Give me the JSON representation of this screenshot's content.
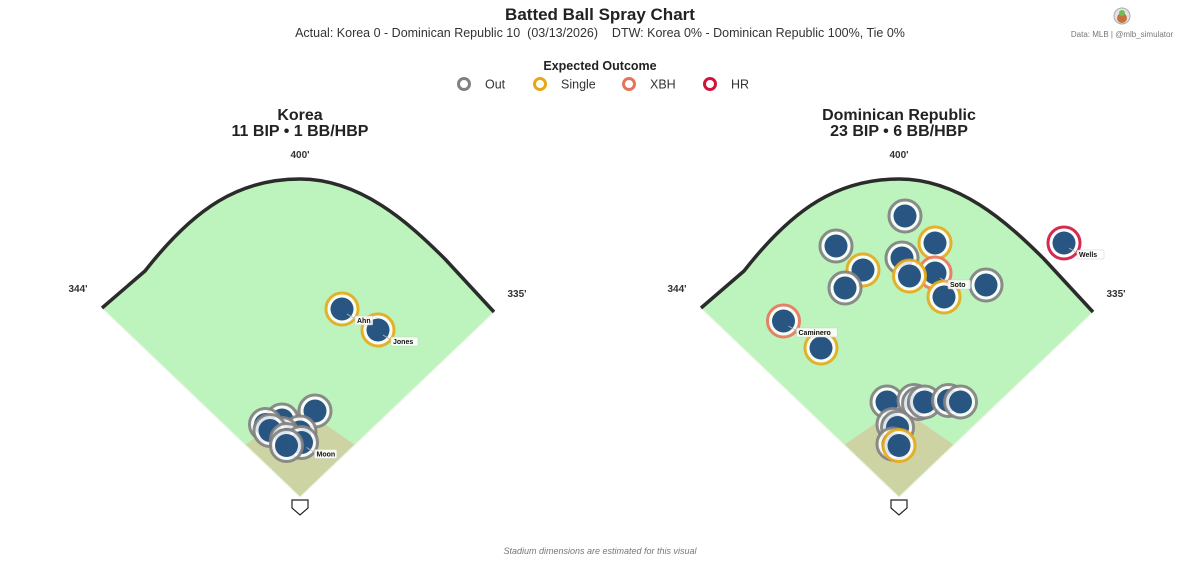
{
  "header": {
    "title": "Batted Ball Spray Chart",
    "subtitle": "Actual: Korea 0 - Dominican Republic 10  (03/13/2026)    DTW: Korea 0% - Dominican Republic 100%, Tie 0%"
  },
  "credit": {
    "text": "Data: MLB  |  @mlb_simulator"
  },
  "footnote": "Stadium dimensions are estimated for this visual",
  "legend": {
    "title": "Expected Outcome",
    "items": [
      {
        "key": "out",
        "label": "Out",
        "color": "#808080"
      },
      {
        "key": "single",
        "label": "Single",
        "color": "#E6A817"
      },
      {
        "key": "xbh",
        "label": "XBH",
        "color": "#E8735A"
      },
      {
        "key": "hr",
        "label": "HR",
        "color": "#D0143C"
      }
    ]
  },
  "colors": {
    "field": "#BDF3BC",
    "infield": "#CDD3A2",
    "wall": "#2B2B2B",
    "ball": "#1E4C7C"
  },
  "chart_data": [
    {
      "type": "scatter",
      "team": "Korea",
      "title_line1": "Korea",
      "title_line2": "11 BIP  •  1 BB/HBP",
      "fences": {
        "center": "400'",
        "left": "344'",
        "right": "335'"
      },
      "points": [
        {
          "x": 0.14,
          "y": 0.66,
          "outcome": "single",
          "label": "Ahn"
        },
        {
          "x": 0.26,
          "y": 0.59,
          "outcome": "single",
          "label": "Jones"
        },
        {
          "x": 0.05,
          "y": 0.32,
          "outcome": "out",
          "label": ""
        },
        {
          "x": -0.06,
          "y": 0.29,
          "outcome": "out",
          "label": ""
        },
        {
          "x": 0.0,
          "y": 0.25,
          "outcome": "out",
          "label": ""
        },
        {
          "x": -0.06,
          "y": 0.245,
          "outcome": "out",
          "label": ""
        },
        {
          "x": -0.115,
          "y": 0.275,
          "outcome": "out",
          "label": ""
        },
        {
          "x": -0.1,
          "y": 0.255,
          "outcome": "out",
          "label": ""
        },
        {
          "x": -0.045,
          "y": 0.225,
          "outcome": "out",
          "label": ""
        },
        {
          "x": 0.005,
          "y": 0.215,
          "outcome": "out",
          "label": "Moon"
        },
        {
          "x": -0.045,
          "y": 0.205,
          "outcome": "out",
          "label": ""
        }
      ]
    },
    {
      "type": "scatter",
      "team": "Dominican Republic",
      "title_line1": "Dominican Republic",
      "title_line2": "23 BIP  •  6 BB/HBP",
      "fences": {
        "center": "400'",
        "left": "344'",
        "right": "335'"
      },
      "points": [
        {
          "x": 0.02,
          "y": 0.97,
          "outcome": "out",
          "label": ""
        },
        {
          "x": -0.21,
          "y": 0.87,
          "outcome": "out",
          "label": ""
        },
        {
          "x": 0.12,
          "y": 0.88,
          "outcome": "single",
          "label": ""
        },
        {
          "x": 0.55,
          "y": 0.88,
          "outcome": "hr",
          "label": "Wells"
        },
        {
          "x": 0.01,
          "y": 0.83,
          "outcome": "out",
          "label": ""
        },
        {
          "x": -0.12,
          "y": 0.79,
          "outcome": "single",
          "label": ""
        },
        {
          "x": 0.12,
          "y": 0.78,
          "outcome": "xbh",
          "label": "Soto"
        },
        {
          "x": 0.035,
          "y": 0.77,
          "outcome": "single",
          "label": ""
        },
        {
          "x": 0.29,
          "y": 0.74,
          "outcome": "out",
          "label": ""
        },
        {
          "x": -0.18,
          "y": 0.73,
          "outcome": "out",
          "label": ""
        },
        {
          "x": 0.15,
          "y": 0.7,
          "outcome": "single",
          "label": ""
        },
        {
          "x": -0.385,
          "y": 0.62,
          "outcome": "xbh",
          "label": "Caminero"
        },
        {
          "x": -0.26,
          "y": 0.53,
          "outcome": "single",
          "label": ""
        },
        {
          "x": -0.04,
          "y": 0.35,
          "outcome": "out",
          "label": ""
        },
        {
          "x": 0.05,
          "y": 0.355,
          "outcome": "out",
          "label": ""
        },
        {
          "x": 0.065,
          "y": 0.345,
          "outcome": "out",
          "label": ""
        },
        {
          "x": 0.085,
          "y": 0.35,
          "outcome": "out",
          "label": ""
        },
        {
          "x": 0.165,
          "y": 0.355,
          "outcome": "out",
          "label": ""
        },
        {
          "x": 0.205,
          "y": 0.35,
          "outcome": "out",
          "label": ""
        },
        {
          "x": -0.02,
          "y": 0.275,
          "outcome": "out",
          "label": ""
        },
        {
          "x": -0.005,
          "y": 0.265,
          "outcome": "out",
          "label": ""
        },
        {
          "x": -0.02,
          "y": 0.21,
          "outcome": "out",
          "label": ""
        },
        {
          "x": 0.0,
          "y": 0.205,
          "outcome": "single",
          "label": ""
        }
      ]
    }
  ]
}
